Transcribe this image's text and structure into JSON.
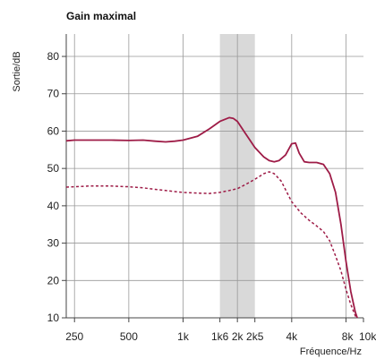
{
  "chart_data": {
    "type": "line",
    "title": "Gain maximal",
    "xlabel": "Fréquence/Hz",
    "ylabel": "Sortie/dB",
    "x_scale": "log",
    "xlim": [
      225,
      10000
    ],
    "ylim": [
      10,
      86
    ],
    "x_ticks": [
      {
        "value": 250,
        "label": "250"
      },
      {
        "value": 500,
        "label": "500"
      },
      {
        "value": 1000,
        "label": "1k"
      },
      {
        "value": 1600,
        "label": "1k6"
      },
      {
        "value": 2000,
        "label": "2k"
      },
      {
        "value": 2500,
        "label": "2k5"
      },
      {
        "value": 4000,
        "label": "4k"
      },
      {
        "value": 8000,
        "label": "8k"
      },
      {
        "value": 10000,
        "label": "10k"
      }
    ],
    "x_grid": [
      250,
      500,
      1000,
      2000,
      4000,
      8000
    ],
    "y_ticks": [
      10,
      20,
      30,
      40,
      50,
      60,
      70,
      80
    ],
    "grid": true,
    "shaded_band": {
      "x_start": 1600,
      "x_end": 2500,
      "color": "#d9d9d9"
    },
    "colors": {
      "series": "#9e1c47",
      "axis": "#444444",
      "grid": "#999999"
    },
    "series": [
      {
        "style": "solid",
        "points": [
          [
            225,
            57.4
          ],
          [
            250,
            57.6
          ],
          [
            300,
            57.6
          ],
          [
            400,
            57.6
          ],
          [
            500,
            57.5
          ],
          [
            600,
            57.6
          ],
          [
            700,
            57.3
          ],
          [
            800,
            57.1
          ],
          [
            900,
            57.3
          ],
          [
            1000,
            57.6
          ],
          [
            1200,
            58.6
          ],
          [
            1400,
            60.6
          ],
          [
            1600,
            62.6
          ],
          [
            1800,
            63.6
          ],
          [
            1900,
            63.4
          ],
          [
            2000,
            62.6
          ],
          [
            2200,
            59.6
          ],
          [
            2500,
            55.6
          ],
          [
            2800,
            53.1
          ],
          [
            3000,
            52.1
          ],
          [
            3200,
            51.8
          ],
          [
            3400,
            52.1
          ],
          [
            3700,
            53.6
          ],
          [
            4000,
            56.6
          ],
          [
            4200,
            56.8
          ],
          [
            4400,
            54.1
          ],
          [
            4700,
            51.8
          ],
          [
            5000,
            51.6
          ],
          [
            5500,
            51.6
          ],
          [
            6000,
            51.1
          ],
          [
            6500,
            48.6
          ],
          [
            7000,
            43.6
          ],
          [
            7500,
            35.1
          ],
          [
            8000,
            25.1
          ],
          [
            8500,
            17.1
          ],
          [
            9000,
            11.6
          ],
          [
            9300,
            9.6
          ]
        ]
      },
      {
        "style": "dashed",
        "points": [
          [
            225,
            45.0
          ],
          [
            250,
            45.1
          ],
          [
            300,
            45.3
          ],
          [
            400,
            45.3
          ],
          [
            500,
            45.1
          ],
          [
            600,
            44.8
          ],
          [
            700,
            44.4
          ],
          [
            800,
            44.1
          ],
          [
            900,
            43.8
          ],
          [
            1000,
            43.6
          ],
          [
            1200,
            43.4
          ],
          [
            1400,
            43.3
          ],
          [
            1600,
            43.6
          ],
          [
            1800,
            44.1
          ],
          [
            2000,
            44.6
          ],
          [
            2200,
            45.6
          ],
          [
            2500,
            47.1
          ],
          [
            2800,
            48.6
          ],
          [
            3000,
            49.1
          ],
          [
            3200,
            48.6
          ],
          [
            3500,
            46.6
          ],
          [
            4000,
            41.1
          ],
          [
            4500,
            38.1
          ],
          [
            5000,
            36.1
          ],
          [
            5500,
            34.6
          ],
          [
            6000,
            33.1
          ],
          [
            6500,
            30.6
          ],
          [
            7000,
            26.6
          ],
          [
            7500,
            22.6
          ],
          [
            8000,
            17.6
          ],
          [
            8500,
            13.6
          ],
          [
            9000,
            10.6
          ],
          [
            9200,
            9.6
          ]
        ]
      }
    ]
  }
}
